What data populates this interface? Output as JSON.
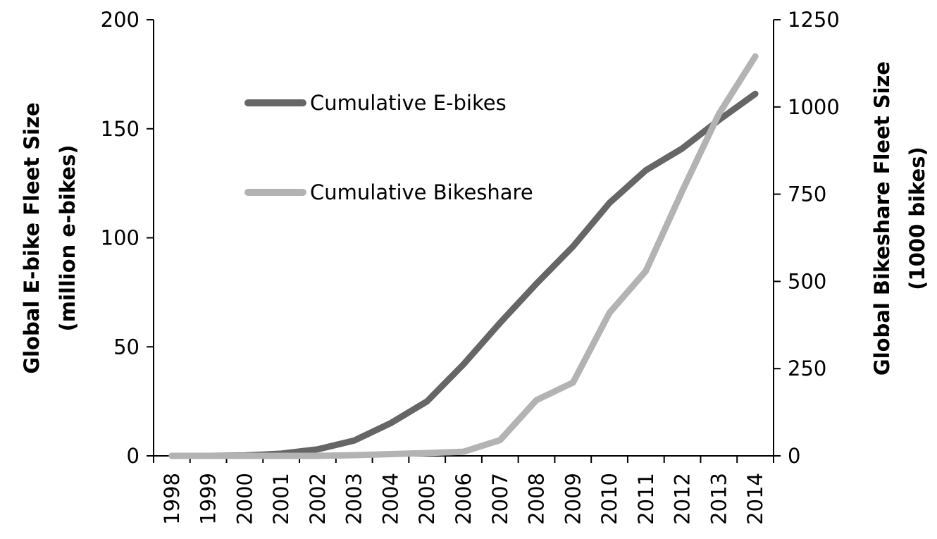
{
  "chart_data": {
    "type": "line",
    "title": "",
    "categories": [
      "1998",
      "1999",
      "2000",
      "2001",
      "2002",
      "2003",
      "2004",
      "2005",
      "2006",
      "2007",
      "2008",
      "2009",
      "2010",
      "2011",
      "2012",
      "2013",
      "2014"
    ],
    "y_left": {
      "label_line1": "Global E-bike Fleet Size",
      "label_line2": "(million e-bikes)",
      "ylim": [
        0,
        200
      ],
      "ticks": [
        0,
        50,
        100,
        150,
        200
      ]
    },
    "y_right": {
      "label_line1": "Global Bikeshare Fleet Size",
      "label_line2": "(1000 bikes)",
      "ylim": [
        0,
        1250
      ],
      "ticks": [
        0,
        250,
        500,
        750,
        1000,
        1250
      ]
    },
    "series": [
      {
        "name": "Cumulative E-bikes",
        "axis": "left",
        "color": "#666666",
        "values": [
          0,
          0,
          0.2,
          1,
          3,
          7,
          15,
          25,
          42,
          61,
          79,
          96,
          116,
          131,
          141,
          154,
          166
        ]
      },
      {
        "name": "Cumulative Bikeshare",
        "axis": "right",
        "color": "#b3b3b3",
        "values": [
          0,
          0,
          0,
          0,
          0,
          2,
          5,
          8,
          12,
          45,
          160,
          210,
          410,
          530,
          760,
          980,
          1145
        ]
      }
    ],
    "legend_position": "upper-left-inside",
    "grid": false
  }
}
